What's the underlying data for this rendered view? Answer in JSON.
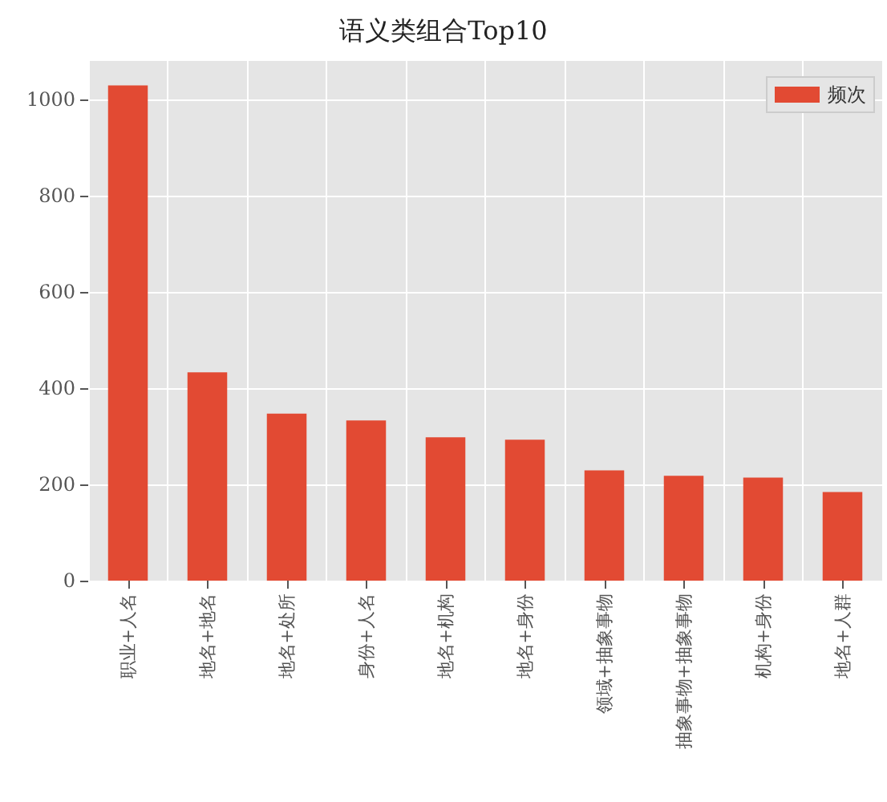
{
  "chart_data": {
    "type": "bar",
    "title": "语义类组合Top10",
    "categories": [
      "职业+人名",
      "地名+地名",
      "地名+处所",
      "身份+人名",
      "地名+机构",
      "地名+身份",
      "领域+抽象事物",
      "抽象事物+抽象事物",
      "机构+身份",
      "地名+人群"
    ],
    "series": [
      {
        "name": "频次",
        "color": "#e24a33",
        "values": [
          1029,
          433,
          347,
          333,
          298,
          293,
          229,
          218,
          214,
          184
        ]
      }
    ],
    "ylim": [
      0,
      1080
    ],
    "yticks": [
      0,
      200,
      400,
      600,
      800,
      1000
    ],
    "grid": true,
    "legend": "top right"
  }
}
